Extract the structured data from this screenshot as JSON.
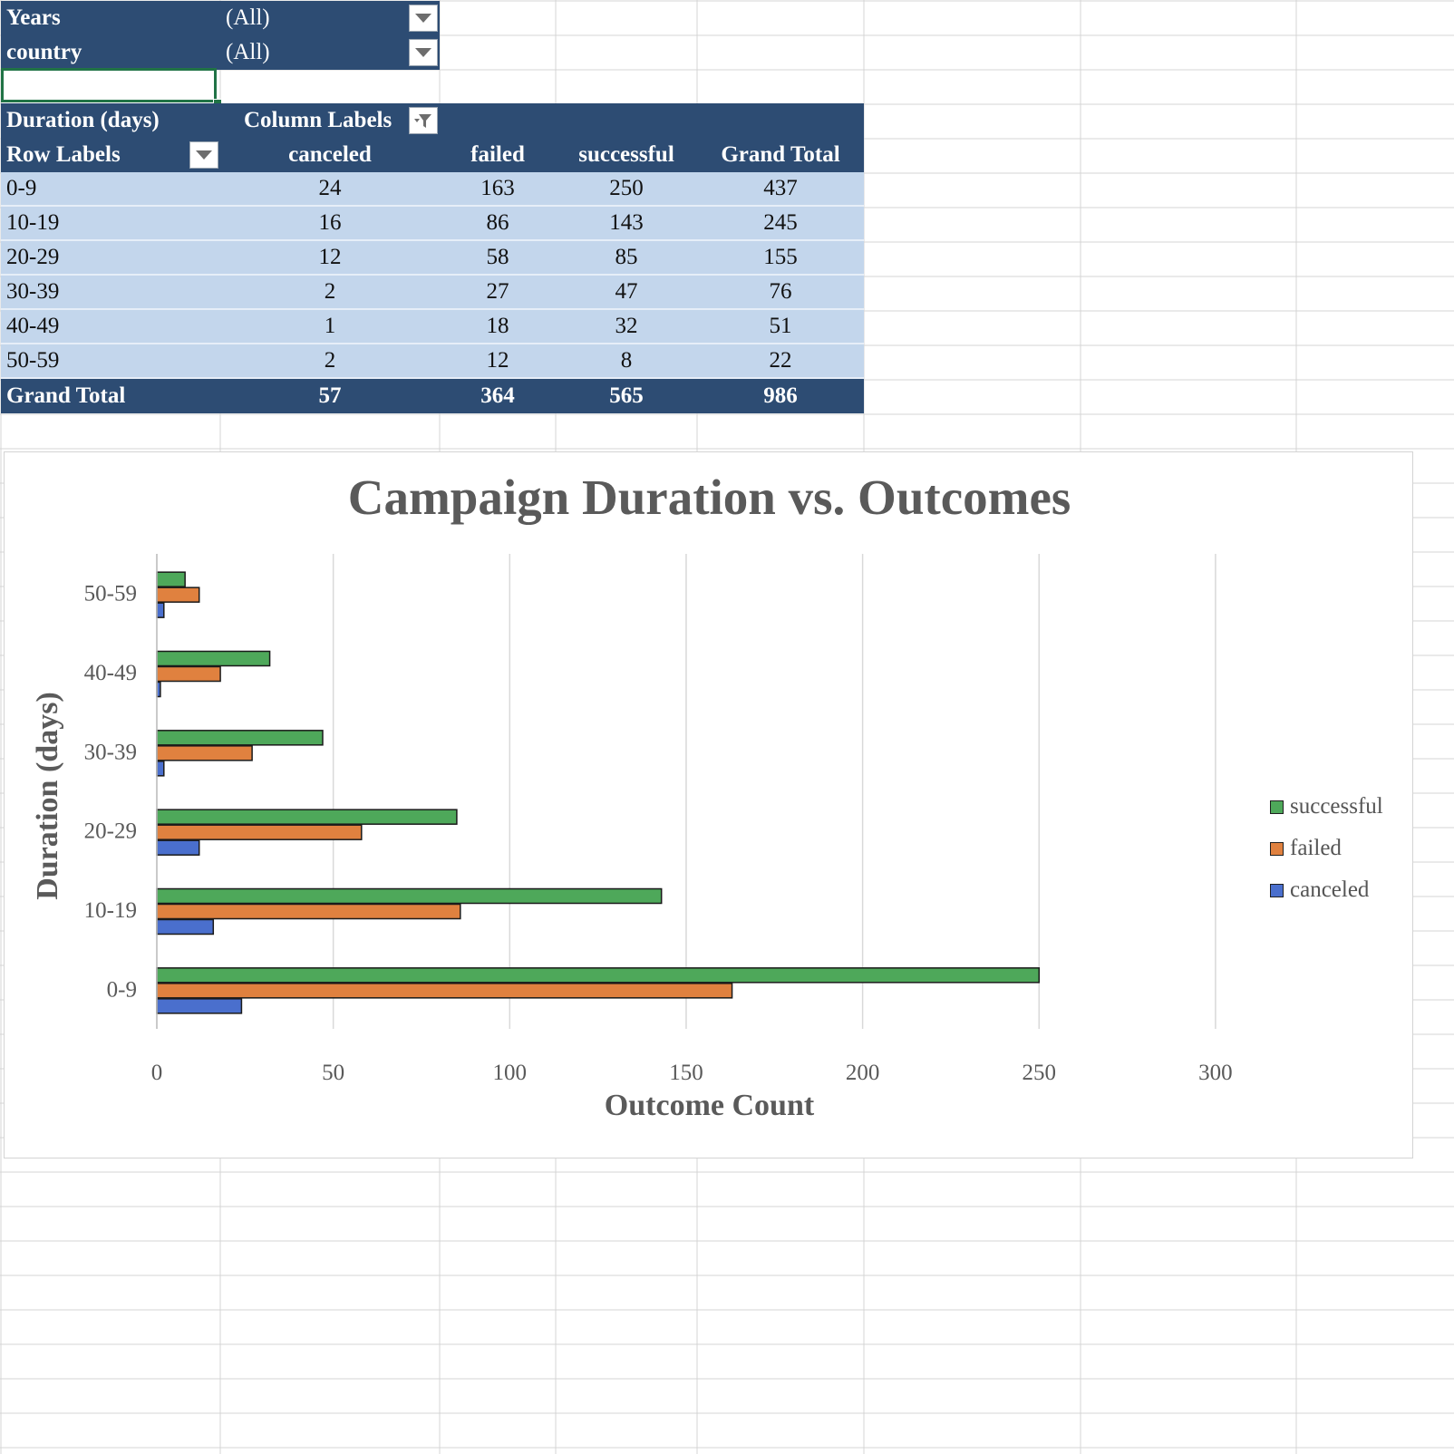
{
  "filters": [
    {
      "label": "Years",
      "value": "(All)"
    },
    {
      "label": "country",
      "value": "(All)"
    }
  ],
  "pivot": {
    "values_label": "Duration (days)",
    "column_labels": "Column Labels",
    "row_labels": "Row Labels",
    "columns": [
      "canceled",
      "failed",
      "successful",
      "Grand Total"
    ],
    "rows": [
      {
        "label": "0-9",
        "values": [
          "24",
          "163",
          "250",
          "437"
        ]
      },
      {
        "label": "10-19",
        "values": [
          "16",
          "86",
          "143",
          "245"
        ]
      },
      {
        "label": "20-29",
        "values": [
          "12",
          "58",
          "85",
          "155"
        ]
      },
      {
        "label": "30-39",
        "values": [
          "2",
          "27",
          "47",
          "76"
        ]
      },
      {
        "label": "40-49",
        "values": [
          "1",
          "18",
          "32",
          "51"
        ]
      },
      {
        "label": "50-59",
        "values": [
          "2",
          "12",
          "8",
          "22"
        ]
      }
    ],
    "grand_total": {
      "label": "Grand Total",
      "values": [
        "57",
        "364",
        "565",
        "986"
      ]
    }
  },
  "colors": {
    "header_bg": "#2d4c73",
    "row_bg": "#c3d6ec",
    "successful": "#4ea85a",
    "failed": "#e0813f",
    "canceled": "#4a6fcd"
  },
  "chart_data": {
    "type": "bar",
    "orientation": "horizontal",
    "title": "Campaign Duration vs. Outcomes",
    "xlabel": "Outcome Count",
    "ylabel": "Duration (days)",
    "categories": [
      "0-9",
      "10-19",
      "20-29",
      "30-39",
      "40-49",
      "50-59"
    ],
    "series": [
      {
        "name": "canceled",
        "color": "#4a6fcd",
        "values": [
          24,
          16,
          12,
          2,
          1,
          2
        ]
      },
      {
        "name": "failed",
        "color": "#e0813f",
        "values": [
          163,
          86,
          58,
          27,
          18,
          12
        ]
      },
      {
        "name": "successful",
        "color": "#4ea85a",
        "values": [
          250,
          143,
          85,
          47,
          32,
          8
        ]
      }
    ],
    "xlim": [
      0,
      300
    ],
    "xticks": [
      "0",
      "50",
      "100",
      "150",
      "200",
      "250",
      "300"
    ],
    "grid": true,
    "legend": [
      "successful",
      "failed",
      "canceled"
    ],
    "legend_position": "right"
  }
}
